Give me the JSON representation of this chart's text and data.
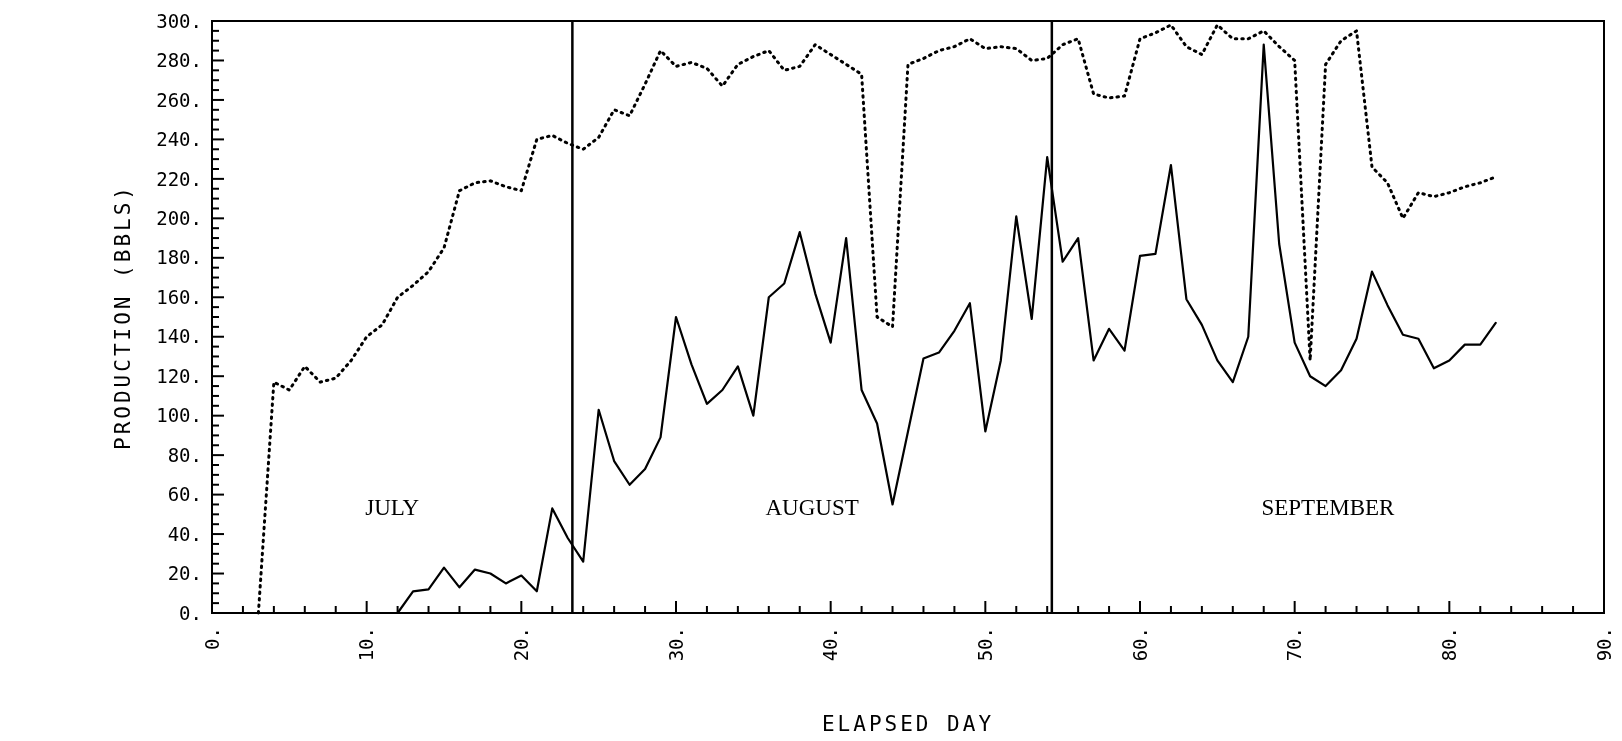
{
  "chart_data": {
    "type": "line",
    "xlabel": "ELAPSED DAY",
    "ylabel": "PRODUCTION (BBLS)",
    "xlim": [
      0,
      90
    ],
    "ylim": [
      0,
      300
    ],
    "xticks": [
      {
        "value": 0,
        "label": "0."
      },
      {
        "value": 2,
        "label": null
      },
      {
        "value": 4,
        "label": null
      },
      {
        "value": 6,
        "label": null
      },
      {
        "value": 8,
        "label": null
      },
      {
        "value": 10,
        "label": "10."
      },
      {
        "value": 12,
        "label": null
      },
      {
        "value": 14,
        "label": null
      },
      {
        "value": 16,
        "label": null
      },
      {
        "value": 18,
        "label": null
      },
      {
        "value": 20,
        "label": "20."
      },
      {
        "value": 22,
        "label": null
      },
      {
        "value": 24,
        "label": null
      },
      {
        "value": 26,
        "label": null
      },
      {
        "value": 28,
        "label": null
      },
      {
        "value": 30,
        "label": "30."
      },
      {
        "value": 32,
        "label": null
      },
      {
        "value": 34,
        "label": null
      },
      {
        "value": 36,
        "label": null
      },
      {
        "value": 38,
        "label": null
      },
      {
        "value": 40,
        "label": "40."
      },
      {
        "value": 42,
        "label": null
      },
      {
        "value": 44,
        "label": null
      },
      {
        "value": 46,
        "label": null
      },
      {
        "value": 48,
        "label": null
      },
      {
        "value": 50,
        "label": "50."
      },
      {
        "value": 52,
        "label": null
      },
      {
        "value": 54,
        "label": null
      },
      {
        "value": 56,
        "label": null
      },
      {
        "value": 58,
        "label": null
      },
      {
        "value": 60,
        "label": "60."
      },
      {
        "value": 62,
        "label": null
      },
      {
        "value": 64,
        "label": null
      },
      {
        "value": 66,
        "label": null
      },
      {
        "value": 68,
        "label": null
      },
      {
        "value": 70,
        "label": "70."
      },
      {
        "value": 72,
        "label": null
      },
      {
        "value": 74,
        "label": null
      },
      {
        "value": 76,
        "label": null
      },
      {
        "value": 78,
        "label": null
      },
      {
        "value": 80,
        "label": "80."
      },
      {
        "value": 82,
        "label": null
      },
      {
        "value": 84,
        "label": null
      },
      {
        "value": 86,
        "label": null
      },
      {
        "value": 88,
        "label": null
      },
      {
        "value": 90,
        "label": "90."
      }
    ],
    "yticks": [
      {
        "value": 0,
        "label": "0."
      },
      {
        "value": 5,
        "label": null
      },
      {
        "value": 10,
        "label": null
      },
      {
        "value": 15,
        "label": null
      },
      {
        "value": 20,
        "label": "20."
      },
      {
        "value": 25,
        "label": null
      },
      {
        "value": 30,
        "label": null
      },
      {
        "value": 35,
        "label": null
      },
      {
        "value": 40,
        "label": "40."
      },
      {
        "value": 45,
        "label": null
      },
      {
        "value": 50,
        "label": null
      },
      {
        "value": 55,
        "label": null
      },
      {
        "value": 60,
        "label": "60."
      },
      {
        "value": 65,
        "label": null
      },
      {
        "value": 70,
        "label": null
      },
      {
        "value": 75,
        "label": null
      },
      {
        "value": 80,
        "label": "80."
      },
      {
        "value": 85,
        "label": null
      },
      {
        "value": 90,
        "label": null
      },
      {
        "value": 95,
        "label": null
      },
      {
        "value": 100,
        "label": "100."
      },
      {
        "value": 105,
        "label": null
      },
      {
        "value": 110,
        "label": null
      },
      {
        "value": 115,
        "label": null
      },
      {
        "value": 120,
        "label": "120."
      },
      {
        "value": 125,
        "label": null
      },
      {
        "value": 130,
        "label": null
      },
      {
        "value": 135,
        "label": null
      },
      {
        "value": 140,
        "label": "140."
      },
      {
        "value": 145,
        "label": null
      },
      {
        "value": 150,
        "label": null
      },
      {
        "value": 155,
        "label": null
      },
      {
        "value": 160,
        "label": "160."
      },
      {
        "value": 165,
        "label": null
      },
      {
        "value": 170,
        "label": null
      },
      {
        "value": 175,
        "label": null
      },
      {
        "value": 180,
        "label": "180."
      },
      {
        "value": 185,
        "label": null
      },
      {
        "value": 190,
        "label": null
      },
      {
        "value": 195,
        "label": null
      },
      {
        "value": 200,
        "label": "200."
      },
      {
        "value": 205,
        "label": null
      },
      {
        "value": 210,
        "label": null
      },
      {
        "value": 215,
        "label": null
      },
      {
        "value": 220,
        "label": "220."
      },
      {
        "value": 225,
        "label": null
      },
      {
        "value": 230,
        "label": null
      },
      {
        "value": 235,
        "label": null
      },
      {
        "value": 240,
        "label": "240."
      },
      {
        "value": 245,
        "label": null
      },
      {
        "value": 250,
        "label": null
      },
      {
        "value": 255,
        "label": null
      },
      {
        "value": 260,
        "label": "260."
      },
      {
        "value": 265,
        "label": null
      },
      {
        "value": 270,
        "label": null
      },
      {
        "value": 275,
        "label": null
      },
      {
        "value": 280,
        "label": "280."
      },
      {
        "value": 285,
        "label": null
      },
      {
        "value": 290,
        "label": null
      },
      {
        "value": 295,
        "label": null
      },
      {
        "value": 300,
        "label": "300."
      }
    ],
    "series": [
      {
        "color": "#000000",
        "line_style": "dotted",
        "x": [
          3,
          4,
          5,
          6,
          7,
          8,
          9,
          10,
          11,
          12,
          13,
          14,
          15,
          16,
          17,
          18,
          19,
          20,
          21,
          22,
          23,
          24,
          25,
          26,
          27,
          28,
          29,
          30,
          31,
          32,
          33,
          34,
          35,
          36,
          37,
          38,
          39,
          40,
          41,
          42,
          43,
          44,
          45,
          46,
          47,
          48,
          49,
          50,
          51,
          52,
          53,
          54,
          55,
          56,
          57,
          58,
          59,
          60,
          61,
          62,
          63,
          64,
          65,
          66,
          67,
          68,
          69,
          70,
          71,
          72,
          73,
          74,
          75,
          76,
          77,
          78,
          79,
          80,
          81,
          82,
          83
        ],
        "values": [
          0,
          117,
          113,
          125,
          117,
          119,
          128,
          140,
          146,
          160,
          166,
          173,
          185,
          214,
          218,
          219,
          216,
          214,
          240,
          242,
          238,
          235,
          241,
          255,
          252,
          268,
          285,
          277,
          279,
          276,
          267,
          278,
          282,
          285,
          275,
          277,
          288,
          283,
          278,
          273,
          150,
          145,
          278,
          281,
          285,
          287,
          291,
          286,
          287,
          286,
          280,
          281,
          288,
          291,
          263,
          261,
          262,
          291,
          294,
          298,
          287,
          283,
          298,
          291,
          291,
          295,
          287,
          280,
          128,
          278,
          290,
          295,
          226,
          218,
          200,
          213,
          211,
          213,
          216,
          218,
          221
        ]
      },
      {
        "color": "#000000",
        "line_style": "solid",
        "x": [
          11,
          12,
          13,
          14,
          15,
          16,
          17,
          18,
          19,
          20,
          21,
          22,
          23,
          24,
          25,
          26,
          27,
          28,
          29,
          30,
          31,
          32,
          33,
          34,
          35,
          36,
          37,
          38,
          39,
          40,
          41,
          42,
          43,
          44,
          45,
          46,
          47,
          48,
          49,
          50,
          51,
          52,
          53,
          54,
          55,
          56,
          57,
          58,
          59,
          60,
          61,
          62,
          63,
          64,
          65,
          66,
          67,
          68,
          69,
          70,
          71,
          72,
          73,
          74,
          75,
          76,
          77,
          78,
          79,
          80,
          81,
          82,
          83
        ],
        "values": [
          0,
          0,
          11,
          12,
          23,
          13,
          22,
          20,
          15,
          19,
          11,
          53,
          38,
          26,
          103,
          77,
          65,
          73,
          89,
          150,
          126,
          106,
          113,
          125,
          100,
          160,
          167,
          193,
          162,
          137,
          190,
          113,
          96,
          55,
          92,
          129,
          132,
          143,
          157,
          92,
          128,
          201,
          149,
          231,
          178,
          190,
          128,
          144,
          133,
          181,
          182,
          227,
          159,
          146,
          128,
          117,
          140,
          288,
          187,
          137,
          120,
          115,
          123,
          139,
          173,
          156,
          141,
          139,
          124,
          128,
          136,
          136,
          147
        ]
      }
    ],
    "ref_lines": [
      {
        "axis": "x",
        "value": 23.3,
        "color": "#000000",
        "line_style": "solid"
      },
      {
        "axis": "x",
        "value": 54.3,
        "color": "#000000",
        "line_style": "solid"
      }
    ],
    "annotations": [
      "JULY",
      "AUGUST",
      "SEPTEMBER"
    ],
    "grid": false
  }
}
